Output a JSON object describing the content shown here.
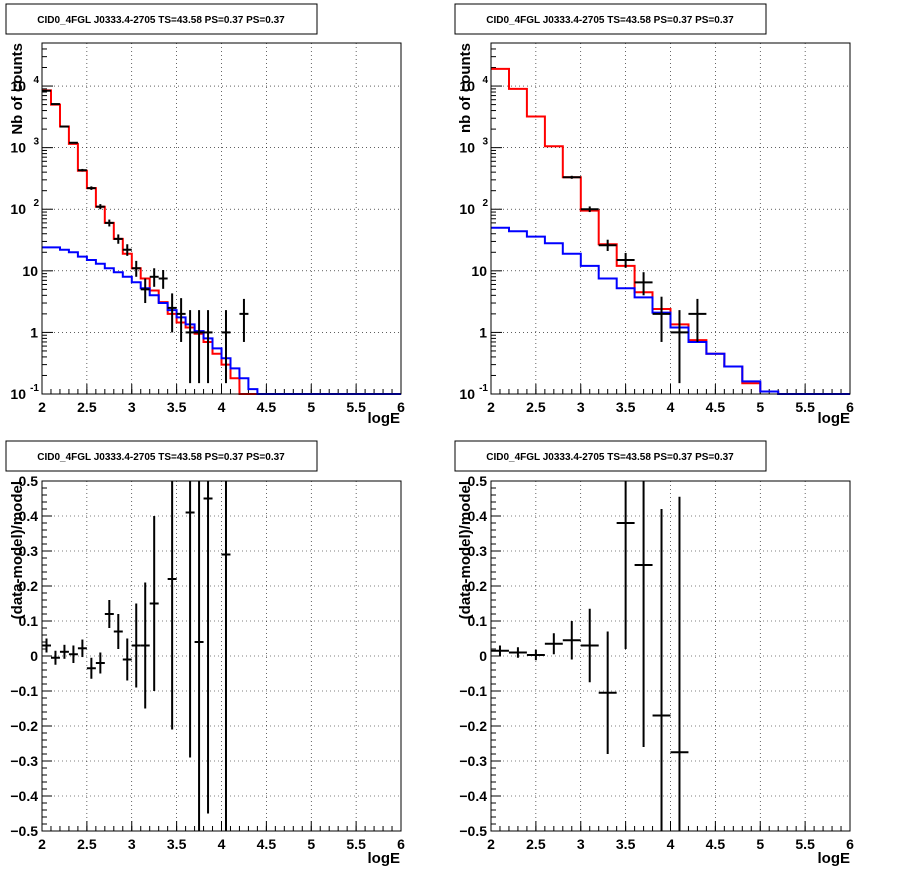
{
  "chart_data": [
    {
      "type": "histogram",
      "title": "CID0_4FGL J0333.4-2705 TS=43.58 PS=0.37 PS=0.37",
      "xlabel": "logE",
      "ylabel": "Nb of counts",
      "xlim": [
        2,
        6
      ],
      "ylim": [
        0.1,
        50000
      ],
      "yscale": "log",
      "grid": true,
      "x_ticks": [
        "2",
        "2.5",
        "3",
        "3.5",
        "4",
        "4.5",
        "5",
        "5.5",
        "6"
      ],
      "y_ticks": [
        "10^-1",
        "1",
        "10",
        "10^2",
        "10^3",
        "10^4"
      ],
      "bin_width": 0.1,
      "series": [
        {
          "label": "red",
          "color": "#ff0000",
          "x_start": 2.0,
          "values": [
            8500,
            5000,
            2200,
            1150,
            420,
            220,
            110,
            60,
            33,
            19,
            11,
            7.5,
            4.8,
            3.1,
            2.0,
            1.45,
            1.2,
            0.95,
            0.7,
            0.45,
            0.3,
            0.18,
            0.1,
            0.08,
            0.08,
            0.08,
            0.08,
            0.08,
            0.08,
            0.08,
            0.08,
            0.08,
            0.08,
            0.08,
            0.08,
            0.08,
            0.08,
            0.08,
            0.08,
            0.08
          ]
        },
        {
          "label": "blue",
          "color": "#0000ff",
          "x_start": 2.0,
          "values": [
            24,
            24,
            22,
            20,
            17,
            15,
            13,
            11,
            9.5,
            8,
            6.5,
            5.2,
            4,
            3,
            2.3,
            1.75,
            1.35,
            1.05,
            0.8,
            0.55,
            0.38,
            0.26,
            0.18,
            0.12,
            0.1,
            0.1,
            0.1,
            0.1,
            0.1,
            0.1,
            0.1,
            0.1,
            0.1,
            0.1,
            0.1,
            0.1,
            0.1,
            0.1,
            0.1,
            0.1
          ]
        },
        {
          "label": "data",
          "color": "#000000",
          "x": [
            2.05,
            2.15,
            2.25,
            2.35,
            2.45,
            2.55,
            2.65,
            2.75,
            2.85,
            2.95,
            3.05,
            3.15,
            3.25,
            3.35,
            3.45,
            3.55,
            3.65,
            3.75,
            3.85,
            4.05,
            4.25
          ],
          "y": [
            8400,
            5100,
            2200,
            1200,
            430,
            220,
            110,
            60,
            33,
            22,
            11,
            5,
            8,
            7.5,
            2.5,
            2,
            1,
            1,
            1,
            1,
            2
          ],
          "yerr_lo": [
            90,
            70,
            45,
            33,
            20,
            14,
            10,
            7.5,
            5.5,
            4.5,
            3,
            2,
            2.5,
            2.4,
            1.5,
            1.3,
            0.85,
            0.85,
            0.85,
            0.85,
            1.3
          ],
          "yerr_hi": [
            95,
            75,
            48,
            36,
            21,
            15,
            11,
            8,
            6,
            5,
            3.5,
            2.5,
            3,
            2.8,
            1.8,
            1.6,
            1.3,
            1.3,
            1.3,
            1.3,
            1.5
          ]
        }
      ]
    },
    {
      "type": "histogram",
      "title": "CID0_4FGL J0333.4-2705 TS=43.58 PS=0.37 PS=0.37",
      "xlabel": "logE",
      "ylabel": "nb of counts",
      "xlim": [
        2,
        6
      ],
      "ylim": [
        0.1,
        50000
      ],
      "yscale": "log",
      "grid": true,
      "x_ticks": [
        "2",
        "2.5",
        "3",
        "3.5",
        "4",
        "4.5",
        "5",
        "5.5",
        "6"
      ],
      "y_ticks": [
        "10^-1",
        "1",
        "10",
        "10^2",
        "10^3",
        "10^4"
      ],
      "bin_width": 0.2,
      "series": [
        {
          "label": "red",
          "color": "#ff0000",
          "x_start": 2.0,
          "values": [
            19000,
            9000,
            3200,
            1050,
            330,
            95,
            27,
            12,
            4.5,
            2.4,
            1.35,
            0.75,
            0.45,
            0.28,
            0.15,
            0.11,
            0.1,
            0.1,
            0.1,
            0.1
          ]
        },
        {
          "label": "blue",
          "color": "#0000ff",
          "x_start": 2.0,
          "values": [
            50,
            44,
            36,
            28,
            19,
            12,
            7.5,
            5.2,
            3.7,
            2.1,
            1.2,
            0.7,
            0.45,
            0.28,
            0.16,
            0.11,
            0.1,
            0.1,
            0.1,
            0.1
          ]
        },
        {
          "label": "data",
          "color": "#000000",
          "x": [
            2.9,
            3.1,
            3.3,
            3.5,
            3.7,
            3.9,
            4.1,
            4.3
          ],
          "y": [
            330,
            100,
            26,
            15,
            6.5,
            2,
            1,
            2
          ],
          "yerr_lo": [
            18,
            10,
            5,
            3.8,
            2.5,
            1.3,
            0.85,
            1.3
          ],
          "yerr_hi": [
            19,
            11,
            6,
            4.5,
            3,
            1.8,
            1.3,
            1.5
          ]
        }
      ]
    },
    {
      "type": "scatter",
      "title": "CID0_4FGL J0333.4-2705 TS=43.58 PS=0.37 PS=0.37",
      "xlabel": "logE",
      "ylabel": "(data-model)/model",
      "xlim": [
        2,
        6
      ],
      "ylim": [
        -0.5,
        0.5
      ],
      "grid": true,
      "x_ticks": [
        "2",
        "2.5",
        "3",
        "3.5",
        "4",
        "4.5",
        "5",
        "5.5",
        "6"
      ],
      "y_ticks": [
        "-0.5",
        "-0.4",
        "-0.3",
        "-0.2",
        "-0.1",
        "0",
        "0.1",
        "0.2",
        "0.3",
        "0.4",
        "0.5"
      ],
      "xerr": 0.05,
      "x": [
        2.05,
        2.15,
        2.25,
        2.35,
        2.45,
        2.55,
        2.65,
        2.75,
        2.85,
        2.95,
        3.05,
        3.15,
        3.25,
        3.45,
        3.65,
        3.75,
        3.85,
        4.05
      ],
      "y": [
        0.03,
        -0.005,
        0.012,
        0.005,
        0.022,
        -0.035,
        -0.02,
        0.12,
        0.07,
        -0.01,
        0.03,
        0.03,
        0.15,
        0.22,
        0.41,
        0.04,
        0.45,
        0.29
      ],
      "yerr": [
        0.02,
        0.02,
        0.02,
        0.025,
        0.025,
        0.03,
        0.03,
        0.04,
        0.05,
        0.06,
        0.12,
        0.18,
        0.25,
        0.43,
        0.7,
        0.8,
        0.9,
        1.0
      ]
    },
    {
      "type": "scatter",
      "title": "CID0_4FGL J0333.4-2705 TS=43.58 PS=0.37 PS=0.37",
      "xlabel": "logE",
      "ylabel": "(data-model)/model",
      "xlim": [
        2,
        6
      ],
      "ylim": [
        -0.5,
        0.5
      ],
      "grid": true,
      "x_ticks": [
        "2",
        "2.5",
        "3",
        "3.5",
        "4",
        "4.5",
        "5",
        "5.5",
        "6"
      ],
      "y_ticks": [
        "-0.5",
        "-0.4",
        "-0.3",
        "-0.2",
        "-0.1",
        "0",
        "0.1",
        "0.2",
        "0.3",
        "0.4",
        "0.5"
      ],
      "xerr": 0.1,
      "x": [
        2.1,
        2.3,
        2.5,
        2.7,
        2.9,
        3.1,
        3.3,
        3.5,
        3.7,
        3.9,
        4.1
      ],
      "y": [
        0.015,
        0.01,
        0.003,
        0.035,
        0.045,
        0.03,
        -0.105,
        0.38,
        0.26,
        -0.17,
        -0.275
      ],
      "yerr": [
        0.015,
        0.015,
        0.015,
        0.03,
        0.055,
        0.105,
        0.175,
        0.36,
        0.52,
        0.59,
        0.73
      ]
    }
  ]
}
